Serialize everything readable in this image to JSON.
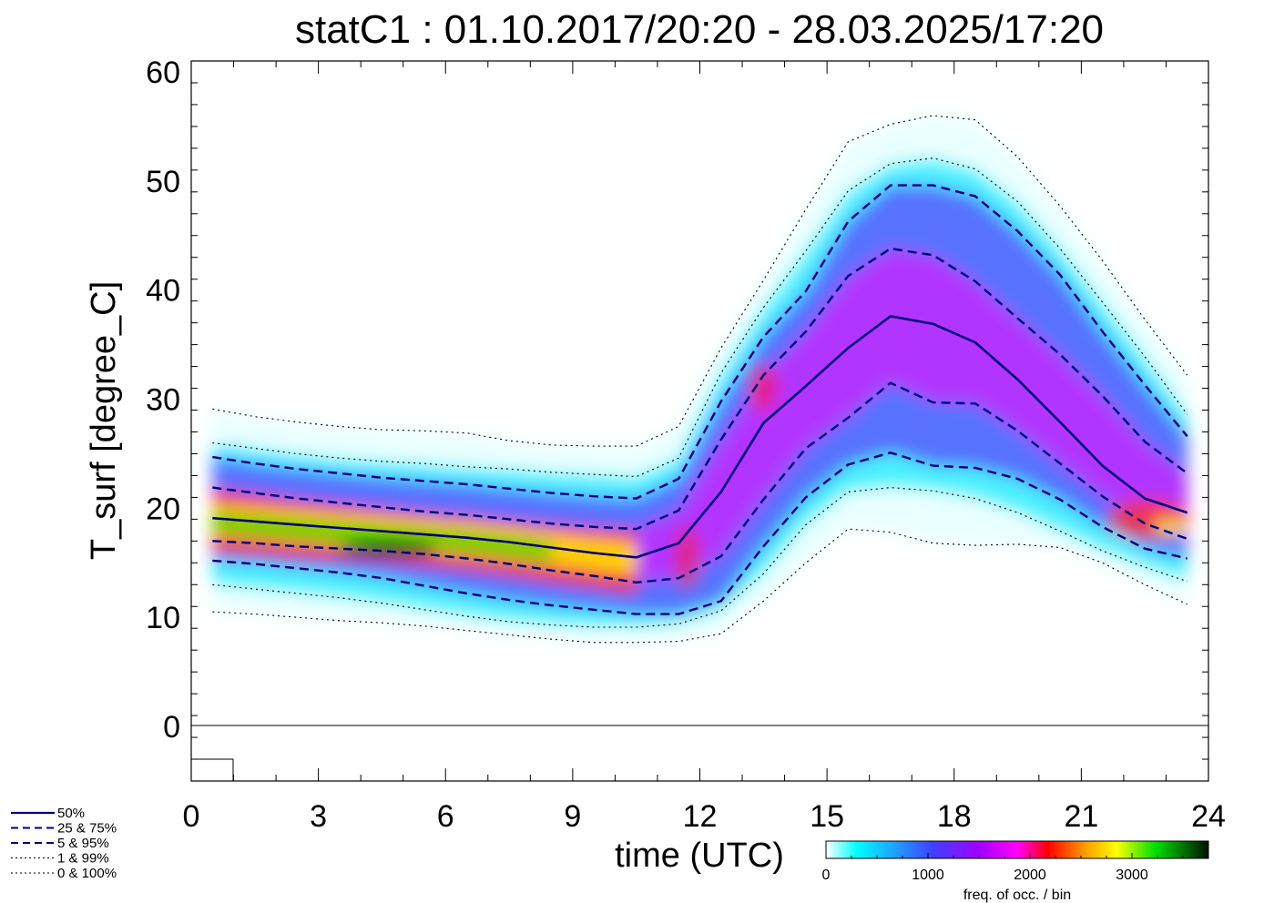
{
  "chart_data": {
    "type": "line",
    "title": "statC1 : 01.10.2017/20:20 - 28.03.2025/17:20",
    "xlabel": "time (UTC)",
    "ylabel": "T_surf [degree_C]",
    "xlim": [
      0,
      24
    ],
    "ylim": [
      -5,
      61
    ],
    "x_ticks": [
      0,
      3,
      6,
      9,
      12,
      15,
      18,
      21,
      24
    ],
    "y_ticks": [
      0,
      10,
      20,
      30,
      40,
      50,
      60
    ],
    "x": [
      0.5,
      1.5,
      2.5,
      3.5,
      4.5,
      5.5,
      6.5,
      7.5,
      8.5,
      9.5,
      10.5,
      11.5,
      12.5,
      13.5,
      14.5,
      15.5,
      16.5,
      17.5,
      18.5,
      19.5,
      20.5,
      21.5,
      22.5,
      23.5
    ],
    "series": [
      {
        "name": "50%",
        "style": "solid",
        "color": "#00007a",
        "values": [
          19.1,
          18.8,
          18.5,
          18.2,
          17.9,
          17.6,
          17.3,
          16.9,
          16.4,
          15.9,
          15.5,
          16.8,
          21.5,
          27.8,
          31.2,
          34.7,
          37.6,
          36.9,
          35.2,
          31.8,
          27.9,
          23.9,
          20.9,
          19.6
        ]
      },
      {
        "name": "25%",
        "style": "dashed",
        "color": "#00007a",
        "values": [
          17.0,
          16.8,
          16.5,
          16.3,
          16.1,
          15.8,
          15.4,
          14.9,
          14.3,
          13.8,
          13.2,
          13.6,
          15.6,
          20.8,
          25.5,
          28.3,
          31.5,
          29.7,
          29.6,
          27.1,
          24.1,
          21.1,
          18.6,
          17.2
        ]
      },
      {
        "name": "75%",
        "style": "dashed",
        "color": "#00007a",
        "values": [
          21.9,
          21.4,
          20.9,
          20.5,
          20.1,
          19.7,
          19.4,
          19.0,
          18.6,
          18.3,
          18.1,
          19.8,
          26.3,
          32.2,
          36.2,
          41.3,
          43.8,
          43.2,
          40.8,
          37.4,
          34.1,
          30.3,
          26.1,
          23.2
        ]
      },
      {
        "name": "5%",
        "style": "dashed",
        "color": "#00007a",
        "values": [
          15.2,
          14.9,
          14.5,
          14.1,
          13.6,
          12.9,
          12.2,
          11.6,
          11.1,
          10.7,
          10.3,
          10.3,
          11.5,
          16.5,
          21.0,
          24.0,
          25.1,
          23.9,
          23.7,
          22.7,
          20.8,
          18.3,
          16.3,
          15.4
        ]
      },
      {
        "name": "95%",
        "style": "dashed",
        "color": "#00007a",
        "values": [
          24.7,
          24.1,
          23.6,
          23.2,
          22.8,
          22.5,
          22.2,
          21.8,
          21.4,
          21.1,
          20.9,
          22.7,
          29.8,
          35.7,
          39.9,
          46.3,
          49.6,
          49.6,
          48.6,
          45.4,
          41.4,
          36.2,
          31.3,
          26.6
        ]
      },
      {
        "name": "1%",
        "style": "dotted",
        "color": "#000000",
        "values": [
          13.0,
          12.6,
          12.2,
          11.8,
          11.3,
          10.7,
          10.1,
          9.6,
          9.3,
          9.1,
          9.1,
          9.4,
          10.6,
          14.0,
          18.5,
          21.5,
          21.9,
          21.6,
          20.9,
          19.6,
          17.9,
          16.1,
          14.6,
          13.3
        ]
      },
      {
        "name": "99%",
        "style": "dotted",
        "color": "#000000",
        "values": [
          26.0,
          25.5,
          25.0,
          24.6,
          24.3,
          24.1,
          23.8,
          23.6,
          23.3,
          23.1,
          22.9,
          24.6,
          32.4,
          38.4,
          43.6,
          49.1,
          51.6,
          52.1,
          51.1,
          48.1,
          43.8,
          38.9,
          33.9,
          28.6
        ]
      },
      {
        "name": "0%",
        "style": "dotted",
        "color": "#000000",
        "values": [
          10.5,
          10.3,
          10.0,
          9.7,
          9.5,
          9.2,
          8.8,
          8.4,
          8.0,
          7.7,
          7.7,
          7.8,
          8.5,
          11.5,
          15.0,
          18.1,
          17.8,
          16.8,
          16.6,
          16.7,
          16.4,
          15.0,
          13.0,
          11.2
        ]
      },
      {
        "name": "100%",
        "style": "dotted",
        "color": "#000000",
        "values": [
          29.1,
          28.4,
          27.9,
          27.5,
          27.2,
          27.1,
          26.9,
          26.2,
          25.8,
          25.7,
          25.7,
          27.5,
          34.7,
          40.9,
          47.4,
          53.6,
          55.2,
          56.0,
          55.6,
          52.2,
          47.7,
          42.7,
          37.3,
          32.2
        ]
      }
    ],
    "legend": {
      "placement": "bottom-left",
      "entries": [
        {
          "label": "50%",
          "style": "solid"
        },
        {
          "label": "25 &  75%",
          "style": "dashed"
        },
        {
          "label": "5 &  95%",
          "style": "dashed"
        },
        {
          "label": "1 &  99%",
          "style": "dotted"
        },
        {
          "label": "0 & 100%",
          "style": "dotted"
        }
      ]
    },
    "colorbar": {
      "label": "freq. of occ. / bin",
      "ticks": [
        0,
        1000,
        2000,
        3000
      ],
      "range": [
        0,
        3750
      ],
      "colors": [
        "#ffffff",
        "#00ffff",
        "#4040ff",
        "#ff00ff",
        "#ff0000",
        "#ffff00",
        "#00e000",
        "#001000"
      ]
    },
    "grid": false,
    "density_shading": true
  }
}
